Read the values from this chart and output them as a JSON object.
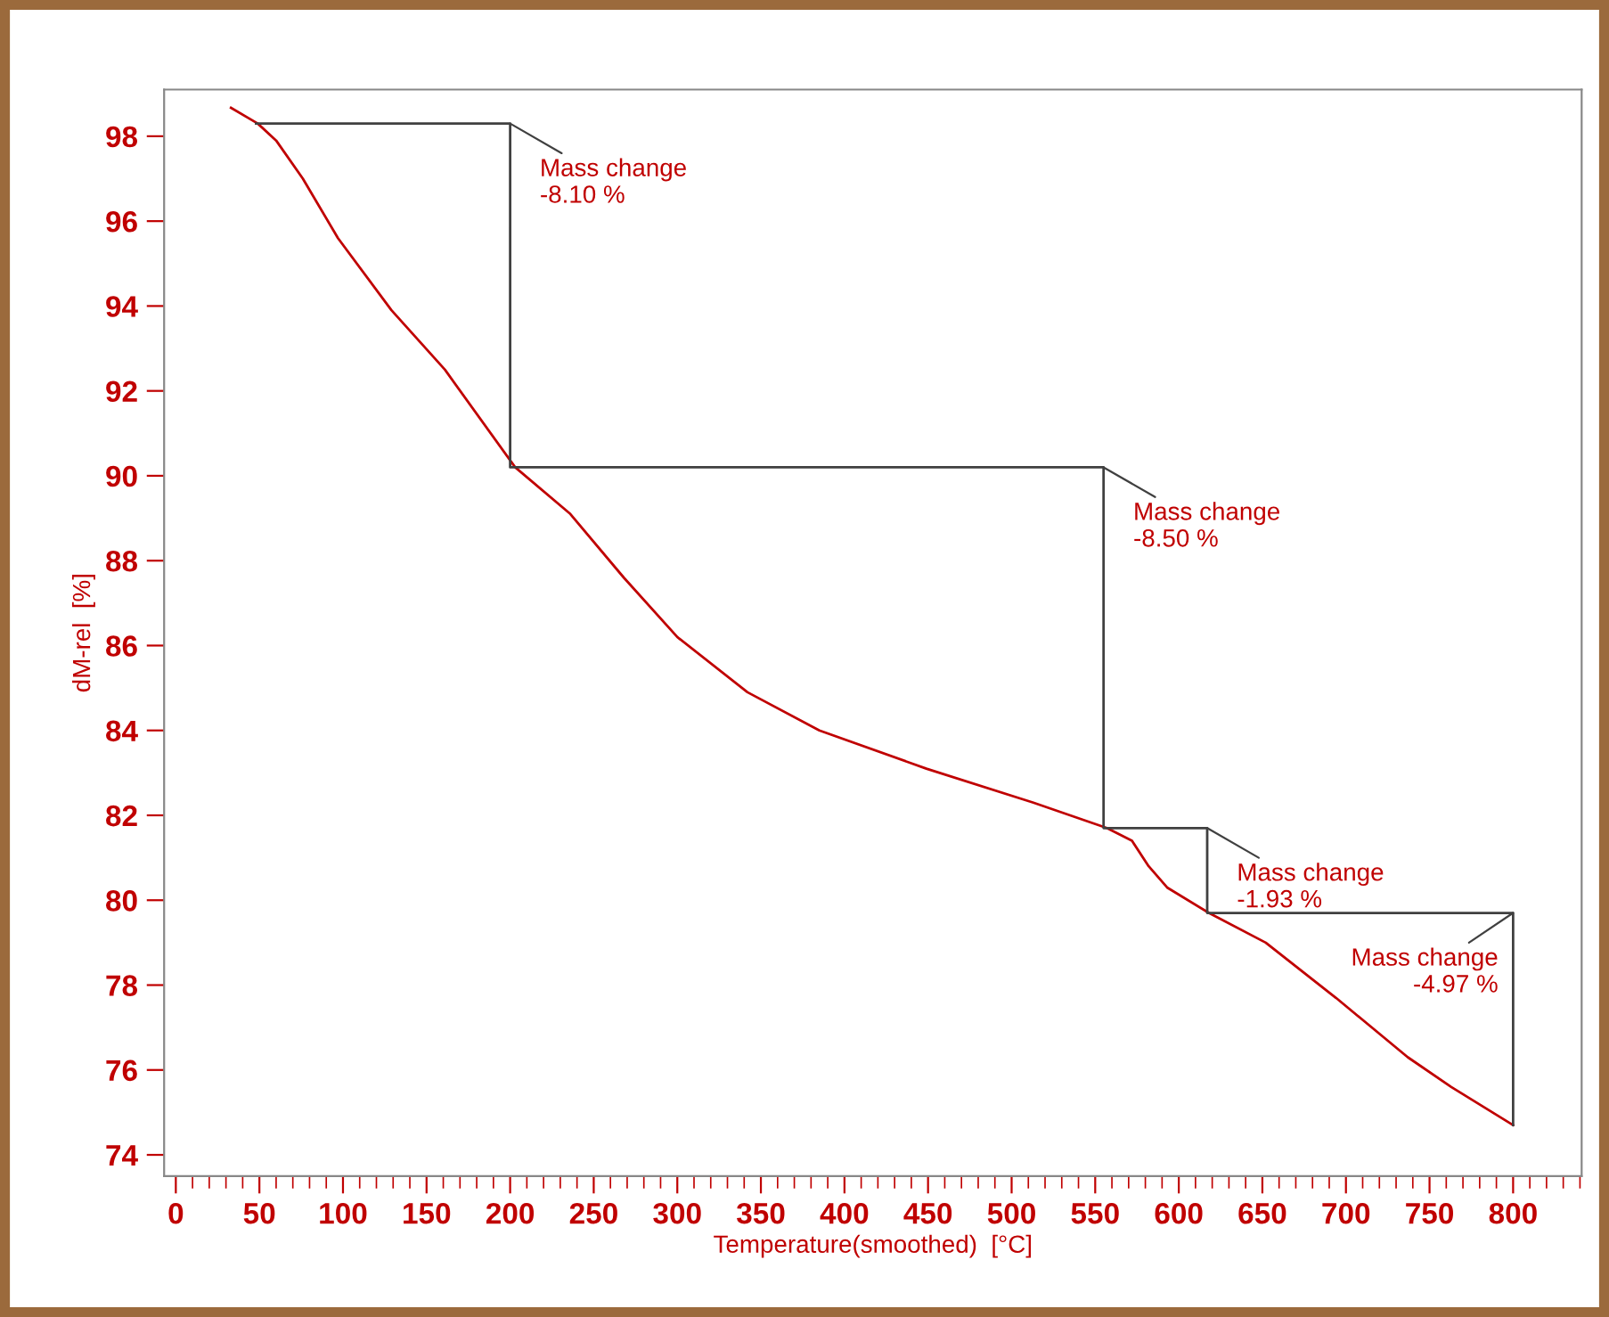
{
  "chart_data": {
    "type": "line",
    "xlabel": "Temperature(smoothed)  [°C]",
    "ylabel": "dM-rel  [%]",
    "xlim": [
      -7,
      841
    ],
    "ylim": [
      73.5,
      99.1
    ],
    "xticks": [
      0,
      50,
      100,
      150,
      200,
      250,
      300,
      350,
      400,
      450,
      500,
      550,
      600,
      650,
      700,
      750,
      800
    ],
    "yticks": [
      74,
      76,
      78,
      80,
      82,
      84,
      86,
      88,
      90,
      92,
      94,
      96,
      98
    ],
    "grid": false,
    "legend": false,
    "marker": "none",
    "line_style": "solid",
    "series": [
      {
        "color": "#c00000",
        "x": [
          33,
          49,
          60,
          76,
          97,
          129,
          161,
          203,
          236,
          268,
          300,
          342,
          385,
          449,
          513,
          557,
          572,
          582,
          593,
          618,
          652,
          694,
          737,
          763,
          800
        ],
        "values": [
          98.67,
          98.3,
          97.9,
          97.0,
          95.6,
          93.9,
          92.5,
          90.2,
          89.1,
          87.6,
          86.2,
          84.9,
          84.0,
          83.1,
          82.3,
          81.7,
          81.4,
          80.8,
          80.3,
          79.7,
          79.0,
          77.7,
          76.3,
          75.6,
          74.7
        ]
      },
      {
        "color": "#404040",
        "x": [
          48,
          200,
          200,
          555,
          555,
          617,
          617,
          800,
          800
        ],
        "values": [
          98.3,
          98.3,
          90.2,
          90.2,
          81.7,
          81.7,
          79.7,
          79.7,
          74.7
        ]
      }
    ],
    "annotations": [
      {
        "text": "Mass change\n-8.10 %",
        "x": 200,
        "y": 98.3
      },
      {
        "text": "Mass change\n-8.50 %",
        "x": 555,
        "y": 90.2
      },
      {
        "text": "Mass change\n-1.93 %",
        "x": 617,
        "y": 81.7
      },
      {
        "text": "Mass change\n-4.97 %",
        "x": 800,
        "y": 79.7
      }
    ]
  }
}
